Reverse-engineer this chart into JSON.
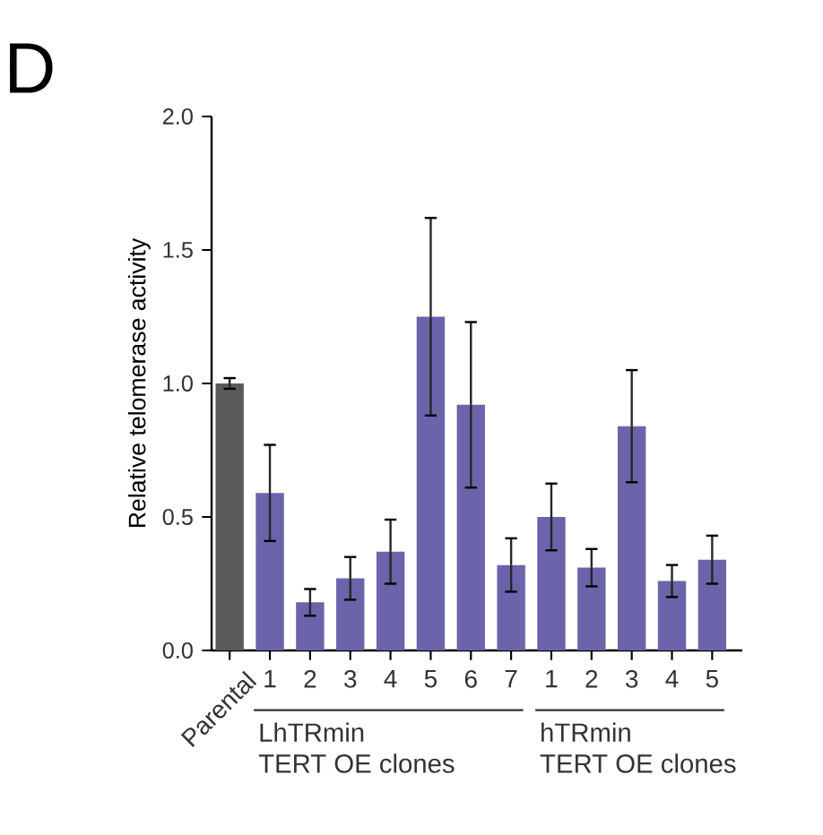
{
  "chart_data": {
    "type": "bar",
    "ylabel": "Relative telomerase activity",
    "categories": [
      "Parental",
      "1",
      "2",
      "3",
      "4",
      "5",
      "6",
      "7",
      "1",
      "2",
      "3",
      "4",
      "5"
    ],
    "values": [
      1.0,
      0.59,
      0.18,
      0.27,
      0.37,
      1.25,
      0.92,
      0.32,
      0.5,
      0.31,
      0.84,
      0.26,
      0.34
    ],
    "errors": [
      0.02,
      0.18,
      0.05,
      0.08,
      0.12,
      0.37,
      0.31,
      0.1,
      0.125,
      0.07,
      0.21,
      0.06,
      0.09
    ],
    "colors": [
      "#5a5a5a",
      "#6c64aa",
      "#6c64aa",
      "#6c64aa",
      "#6c64aa",
      "#6c64aa",
      "#6c64aa",
      "#6c64aa",
      "#6c64aa",
      "#6c64aa",
      "#6c64aa",
      "#6c64aa",
      "#6c64aa"
    ],
    "ylim": [
      0,
      2.0
    ],
    "yticks": [
      {
        "value": 0,
        "label": "0.0"
      },
      0.5,
      {
        "value": 1,
        "label": "1.0"
      },
      1.5,
      {
        "value": 2,
        "label": "2.0"
      }
    ],
    "grid": false,
    "annotations": [
      "D",
      "LhTRmin",
      "TERT OE clones",
      "hTRmin",
      "TERT OE clones"
    ]
  }
}
